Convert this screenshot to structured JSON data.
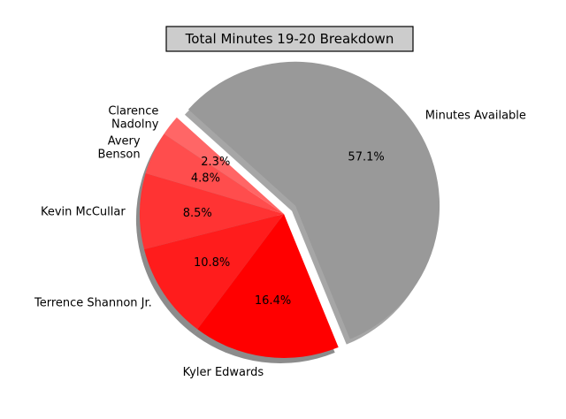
{
  "chart_data": {
    "type": "pie",
    "title": "Total Minutes 19-20 Breakdown",
    "slices": [
      {
        "label": "Minutes Available",
        "value": 57.1,
        "pct_label": "57.1%",
        "color": "#999999",
        "explode": true
      },
      {
        "label": "Kyler Edwards",
        "value": 16.4,
        "pct_label": "16.4%",
        "color": "#ff0000",
        "explode": false
      },
      {
        "label": "Terrence Shannon Jr.",
        "value": 10.8,
        "pct_label": "10.8%",
        "color": "#ff1c1c",
        "explode": false
      },
      {
        "label": "Kevin McCullar",
        "value": 8.5,
        "pct_label": "8.5%",
        "color": "#ff3333",
        "explode": false
      },
      {
        "label": "Avery\nBenson",
        "value": 4.8,
        "pct_label": "4.8%",
        "color": "#ff4d4d",
        "explode": false
      },
      {
        "label": "Clarence\nNadolny",
        "value": 2.3,
        "pct_label": "2.3%",
        "color": "#ff6666",
        "explode": false
      }
    ],
    "shadow": true,
    "start_angle_deg": 270
  }
}
